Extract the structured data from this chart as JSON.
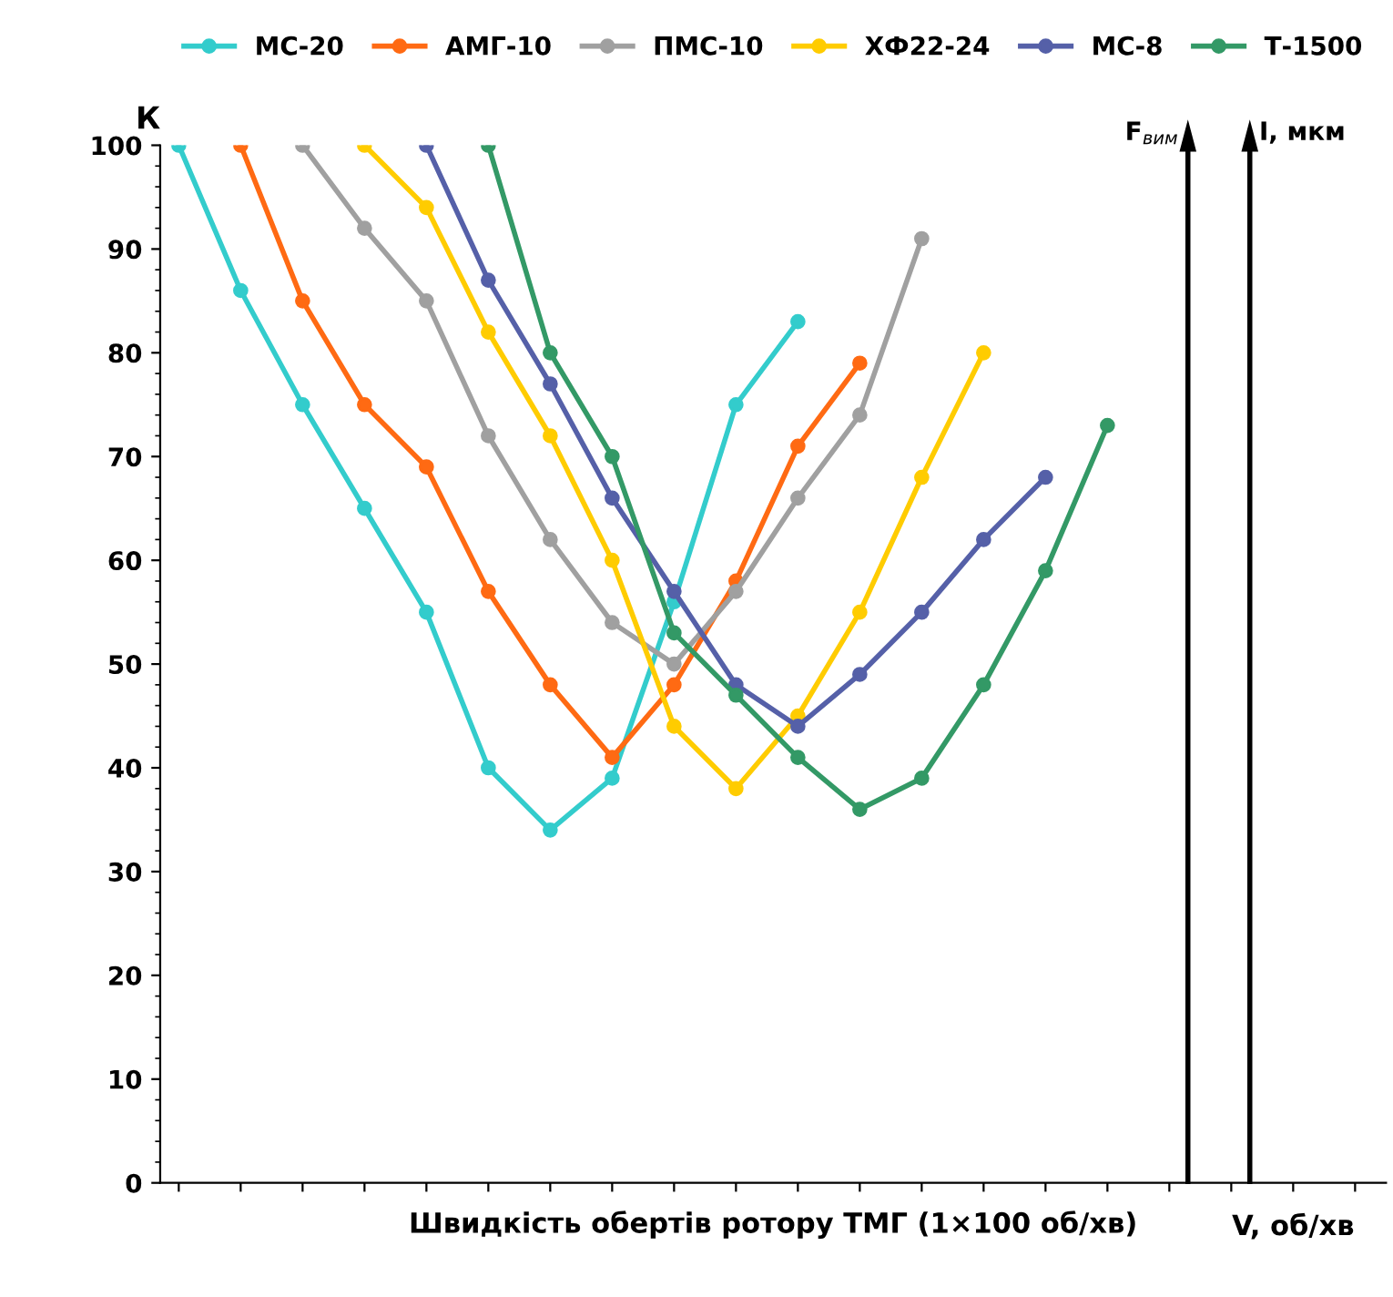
{
  "chart_data": {
    "type": "line",
    "categories": [
      null,
      null,
      null,
      null,
      null,
      null,
      null,
      null,
      null,
      null,
      null,
      null,
      null,
      null,
      null,
      null,
      null,
      null,
      null,
      null
    ],
    "series": [
      {
        "name": "МС-20",
        "color": "#33cccc",
        "values": [
          100,
          86,
          75,
          65,
          55,
          40,
          34,
          39,
          56,
          75,
          83,
          null,
          null,
          null,
          null,
          null,
          null,
          null,
          null,
          null
        ]
      },
      {
        "name": "АМГ-10",
        "color": "#ff6a13",
        "values": [
          null,
          100,
          85,
          75,
          69,
          57,
          48,
          41,
          48,
          58,
          71,
          79,
          null,
          null,
          null,
          null,
          null,
          null,
          null,
          null
        ]
      },
      {
        "name": "ПМС-10",
        "color": "#a0a0a0",
        "values": [
          null,
          null,
          100,
          92,
          85,
          72,
          62,
          54,
          50,
          57,
          66,
          74,
          91,
          null,
          null,
          null,
          null,
          null,
          null,
          null
        ]
      },
      {
        "name": "ХФ22-24",
        "color": "#ffcc00",
        "values": [
          null,
          null,
          null,
          100,
          94,
          82,
          72,
          60,
          44,
          38,
          45,
          55,
          68,
          80,
          null,
          null,
          null,
          null,
          null,
          null
        ]
      },
      {
        "name": "МС-8",
        "color": "#5560a8",
        "values": [
          null,
          null,
          null,
          null,
          100,
          87,
          77,
          66,
          57,
          48,
          44,
          49,
          55,
          62,
          68,
          null,
          null,
          null,
          null,
          null
        ]
      },
      {
        "name": "Т-1500",
        "color": "#339966",
        "values": [
          null,
          null,
          null,
          null,
          null,
          100,
          80,
          70,
          53,
          47,
          41,
          36,
          39,
          48,
          59,
          73,
          null,
          null,
          null,
          null
        ]
      }
    ],
    "xlabel": "Швидкість обертів ротору ТМГ (1×100 об/хв)",
    "ylabel": "К",
    "annotations": [
      "F$_{вим}$",
      "I, мкм",
      "V, об/хв"
    ],
    "ylim": [
      0,
      100
    ],
    "yticks": [
      0,
      10,
      20,
      30,
      40,
      50,
      60,
      70,
      80,
      90,
      100
    ],
    "grid": false,
    "legend": "top",
    "marker": "circle",
    "line_style": "solid"
  }
}
